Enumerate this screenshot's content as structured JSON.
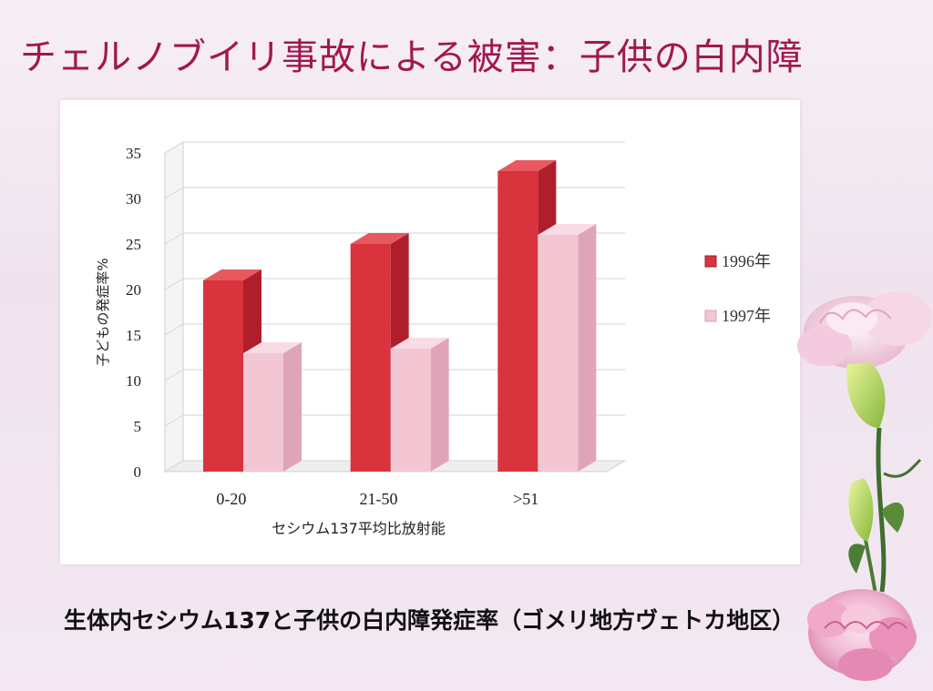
{
  "slide": {
    "title": "チェルノブイリ事故による被害：子供の白内障",
    "caption": "生体内セシウム137と子供の白内障発症率（ゴメリ地方ヴェトカ地区）"
  },
  "chart_data": {
    "type": "bar",
    "categories": [
      "0-20",
      "21-50",
      ">51"
    ],
    "series": [
      {
        "name": "1996年",
        "values": [
          21,
          25,
          33
        ],
        "color": "#d9343e"
      },
      {
        "name": "1997年",
        "values": [
          13,
          13.5,
          26
        ],
        "color": "#f2c6d2"
      }
    ],
    "xlabel": "セシウム137平均比放射能",
    "ylabel": "子どもの発症率%",
    "ylim": [
      0,
      35
    ],
    "yticks": [
      0,
      5,
      10,
      15,
      20,
      25,
      30,
      35
    ],
    "grid": true,
    "legend": "right",
    "style": "3d"
  },
  "decoration": {
    "flower": "carnation-bouquet-illustration"
  }
}
